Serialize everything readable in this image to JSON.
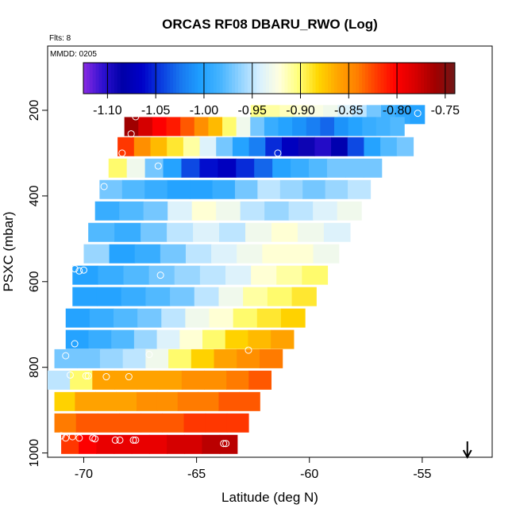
{
  "chart_data": {
    "type": "heatmap",
    "title": "ORCAS RF08 DBARU_RWO (Log)",
    "subtitle": "Flts: 8",
    "panel_label": "MMDD: 0205",
    "xlabel": "Latitude (deg N)",
    "ylabel": "PSXC (mbar)",
    "xlim": [
      -71.6,
      -51.9
    ],
    "ylim": [
      1010,
      50
    ],
    "y_reversed": true,
    "x_ticks": [
      -70,
      -65,
      -60,
      -55
    ],
    "y_ticks": [
      200,
      400,
      600,
      800,
      1000
    ],
    "colorbar": {
      "range": [
        -1.125,
        -0.74
      ],
      "ticks": [
        -1.1,
        -1.05,
        -1.0,
        -0.95,
        -0.9,
        -0.85,
        -0.8,
        -0.75
      ],
      "tick_labels": [
        "-1.10",
        "-1.05",
        "-1.00",
        "-0.95",
        "-0.90",
        "-0.85",
        "-0.80",
        "-0.75"
      ],
      "colors": [
        "#8a2be2",
        "#2e10d0",
        "#0000a8",
        "#0000c8",
        "#0a3ee0",
        "#1878f0",
        "#1ea0ff",
        "#46b4ff",
        "#8fd2ff",
        "#d8f0ff",
        "#ffffe0",
        "#ffff7a",
        "#ffd700",
        "#ffa500",
        "#ff7f00",
        "#ff3a00",
        "#ff0000",
        "#d60000",
        "#a00000",
        "#701818"
      ]
    },
    "rows": [
      {
        "p": 210,
        "x0": -62.6,
        "x1": -54.9,
        "v": [
          -0.905,
          -0.91,
          -0.915,
          -0.92,
          -0.925,
          -0.93,
          -0.94,
          -0.95,
          -0.97,
          -0.985,
          -0.995,
          -1.0
        ]
      },
      {
        "p": 238,
        "x0": -68.2,
        "x1": -55.8,
        "v": [
          -0.76,
          -0.78,
          -0.8,
          -0.81,
          -0.83,
          -0.85,
          -0.87,
          -0.9,
          -0.93,
          -0.97,
          -0.99,
          -1.0,
          -1.01,
          -1.02,
          -1.03,
          -1.01,
          -1.0,
          -0.99,
          -0.985,
          -0.98
        ]
      },
      {
        "p": 285,
        "x0": -68.5,
        "x1": -55.4,
        "v": [
          -0.82,
          -0.85,
          -0.87,
          -0.89,
          -0.91,
          -0.94,
          -0.97,
          -1.0,
          -1.02,
          -1.05,
          -1.07,
          -1.09,
          -1.1,
          -1.08,
          -1.04,
          -1.0,
          -0.98,
          -0.97
        ]
      },
      {
        "p": 335,
        "x0": -68.9,
        "x1": -56.8,
        "v": [
          -0.9,
          -0.93,
          -0.97,
          -1.0,
          -1.04,
          -1.06,
          -1.07,
          -1.05,
          -1.03,
          -1.0,
          -0.99,
          -0.98,
          -0.97,
          -0.97,
          -0.97
        ]
      },
      {
        "p": 385,
        "x0": -69.3,
        "x1": -57.3,
        "v": [
          -0.97,
          -0.98,
          -0.99,
          -1.0,
          -1.0,
          -0.99,
          -0.97,
          -0.95,
          -0.96,
          -0.97,
          -0.96,
          -0.95
        ]
      },
      {
        "p": 435,
        "x0": -69.5,
        "x1": -57.7,
        "v": [
          -0.99,
          -0.98,
          -0.97,
          -0.94,
          -0.92,
          -0.93,
          -0.95,
          -0.96,
          -0.95,
          -0.94,
          -0.93
        ]
      },
      {
        "p": 485,
        "x0": -69.8,
        "x1": -58.2,
        "v": [
          -0.98,
          -0.99,
          -0.97,
          -0.95,
          -0.94,
          -0.95,
          -0.93,
          -0.92,
          -0.93,
          -0.94
        ]
      },
      {
        "p": 535,
        "x0": -70.0,
        "x1": -58.7,
        "v": [
          -0.96,
          -1.0,
          -0.99,
          -0.97,
          -0.95,
          -0.94,
          -0.93,
          -0.92,
          -0.92,
          -0.93
        ]
      },
      {
        "p": 585,
        "x0": -70.5,
        "x1": -59.2,
        "v": [
          -1.0,
          -0.99,
          -0.98,
          -0.97,
          -0.96,
          -0.95,
          -0.94,
          -0.92,
          -0.91,
          -0.9
        ]
      },
      {
        "p": 635,
        "x0": -70.5,
        "x1": -59.7,
        "v": [
          -1.0,
          -1.0,
          -0.99,
          -0.98,
          -0.97,
          -0.95,
          -0.93,
          -0.91,
          -0.9,
          -0.89
        ]
      },
      {
        "p": 685,
        "x0": -70.8,
        "x1": -60.2,
        "v": [
          -1.0,
          -0.99,
          -0.98,
          -0.97,
          -0.95,
          -0.93,
          -0.92,
          -0.9,
          -0.89,
          -0.88
        ]
      },
      {
        "p": 735,
        "x0": -70.8,
        "x1": -60.7,
        "v": [
          -1.0,
          -0.99,
          -0.98,
          -0.96,
          -0.94,
          -0.92,
          -0.9,
          -0.88,
          -0.87,
          -0.86
        ]
      },
      {
        "p": 780,
        "x0": -71.3,
        "x1": -61.2,
        "v": [
          -0.97,
          -0.97,
          -0.96,
          -0.95,
          -0.93,
          -0.9,
          -0.88,
          -0.86,
          -0.85,
          -0.84
        ]
      },
      {
        "p": 830,
        "x0": -71.6,
        "x1": -61.7,
        "v": [
          -0.95,
          -0.9,
          -0.86,
          -0.86,
          -0.86,
          -0.86,
          -0.85,
          -0.85,
          -0.84,
          -0.83
        ]
      },
      {
        "p": 880,
        "x0": -71.3,
        "x1": -62.2,
        "v": [
          -0.88,
          -0.86,
          -0.86,
          -0.86,
          -0.85,
          -0.85,
          -0.84,
          -0.84,
          -0.83,
          -0.83
        ]
      },
      {
        "p": 930,
        "x0": -71.3,
        "x1": -62.7,
        "v": [
          -0.84,
          -0.83,
          -0.83,
          -0.83,
          -0.83,
          -0.83,
          -0.82,
          -0.82,
          -0.82
        ]
      },
      {
        "p": 980,
        "x0": -71.0,
        "x1": -63.2,
        "v": [
          -0.82,
          -0.8,
          -0.79,
          -0.79,
          -0.79,
          -0.79,
          -0.78,
          -0.78,
          -0.77,
          -0.77
        ]
      }
    ],
    "sample_points": [
      {
        "x": -67.7,
        "y": 215
      },
      {
        "x": -57.8,
        "y": 185
      },
      {
        "x": -55.2,
        "y": 207
      },
      {
        "x": -67.9,
        "y": 255
      },
      {
        "x": -68.3,
        "y": 300
      },
      {
        "x": -61.4,
        "y": 300
      },
      {
        "x": -66.7,
        "y": 330
      },
      {
        "x": -69.1,
        "y": 378
      },
      {
        "x": -70.4,
        "y": 570
      },
      {
        "x": -70.2,
        "y": 575
      },
      {
        "x": -70.0,
        "y": 573
      },
      {
        "x": -66.6,
        "y": 585
      },
      {
        "x": -70.4,
        "y": 745
      },
      {
        "x": -70.8,
        "y": 773
      },
      {
        "x": -67.1,
        "y": 770
      },
      {
        "x": -62.7,
        "y": 760
      },
      {
        "x": -70.6,
        "y": 818
      },
      {
        "x": -69.9,
        "y": 820
      },
      {
        "x": -69.8,
        "y": 820
      },
      {
        "x": -69.0,
        "y": 822
      },
      {
        "x": -68.0,
        "y": 822
      },
      {
        "x": -71.0,
        "y": 960
      },
      {
        "x": -70.8,
        "y": 965
      },
      {
        "x": -70.5,
        "y": 962
      },
      {
        "x": -70.2,
        "y": 965
      },
      {
        "x": -69.6,
        "y": 965
      },
      {
        "x": -69.5,
        "y": 967
      },
      {
        "x": -68.6,
        "y": 970
      },
      {
        "x": -68.4,
        "y": 970
      },
      {
        "x": -67.8,
        "y": 970
      },
      {
        "x": -67.7,
        "y": 970
      },
      {
        "x": -63.8,
        "y": 978
      },
      {
        "x": -63.7,
        "y": 978
      }
    ],
    "wind_arrow": {
      "x": -53.0,
      "direction": "down"
    }
  }
}
